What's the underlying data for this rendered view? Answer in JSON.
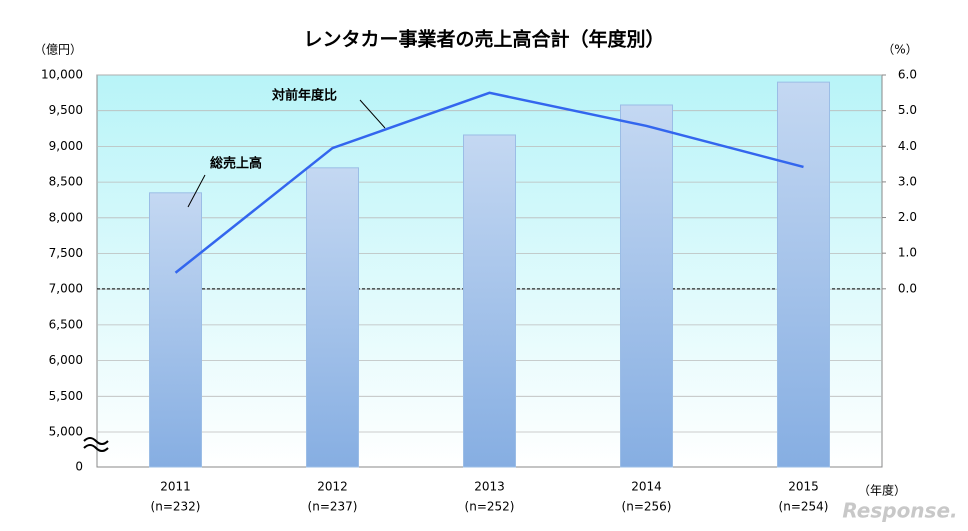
{
  "chart_data": {
    "type": "bar_line",
    "title": "レンタカー事業者の売上高合計（年度別）",
    "y_unit": "（億円）",
    "y2_unit": "（%）",
    "x_unit": "（年度）",
    "watermark": "Response.",
    "categories": [
      "2011",
      "2012",
      "2013",
      "2014",
      "2015"
    ],
    "category_notes": [
      "(n=232)",
      "(n=237)",
      "(n=252)",
      "(n=256)",
      "(n=254)"
    ],
    "series": [
      {
        "name": "総売上高",
        "type": "bar",
        "color": "#9bbde6",
        "values": [
          8350,
          8700,
          9160,
          9580,
          9900
        ]
      },
      {
        "name": "対前年度比",
        "type": "line",
        "axis": "y2",
        "color": "#3366ee",
        "values": [
          0.45,
          3.95,
          5.5,
          4.57,
          3.42
        ]
      }
    ],
    "ylim": [
      0,
      10000
    ],
    "y_break": true,
    "yticks": [
      0,
      {
        "value": 5000,
        "label": "5,000"
      },
      {
        "value": 5500,
        "label": "5,500"
      },
      {
        "value": 6000,
        "label": "6,000"
      },
      {
        "value": 6500,
        "label": "6,500"
      },
      {
        "value": 7000,
        "label": "7,000"
      },
      {
        "value": 7500,
        "label": "7,500"
      },
      {
        "value": 8000,
        "label": "8,000"
      },
      {
        "value": 8500,
        "label": "8,500"
      },
      {
        "value": 9000,
        "label": "9,000"
      },
      {
        "value": 9500,
        "label": "9,500"
      },
      {
        "value": 10000,
        "label": "10,000"
      }
    ],
    "y2lim": [
      -5,
      6
    ],
    "y2ticks": [
      {
        "value": 0,
        "label": "0.0"
      },
      {
        "value": 1,
        "label": "1.0"
      },
      {
        "value": 2,
        "label": "2.0"
      },
      {
        "value": 3,
        "label": "3.0"
      },
      {
        "value": 4,
        "label": "4.0"
      },
      {
        "value": 5,
        "label": "5.0"
      },
      {
        "value": 6,
        "label": "6.0"
      }
    ],
    "y2_zero_line": true,
    "grid": true
  }
}
